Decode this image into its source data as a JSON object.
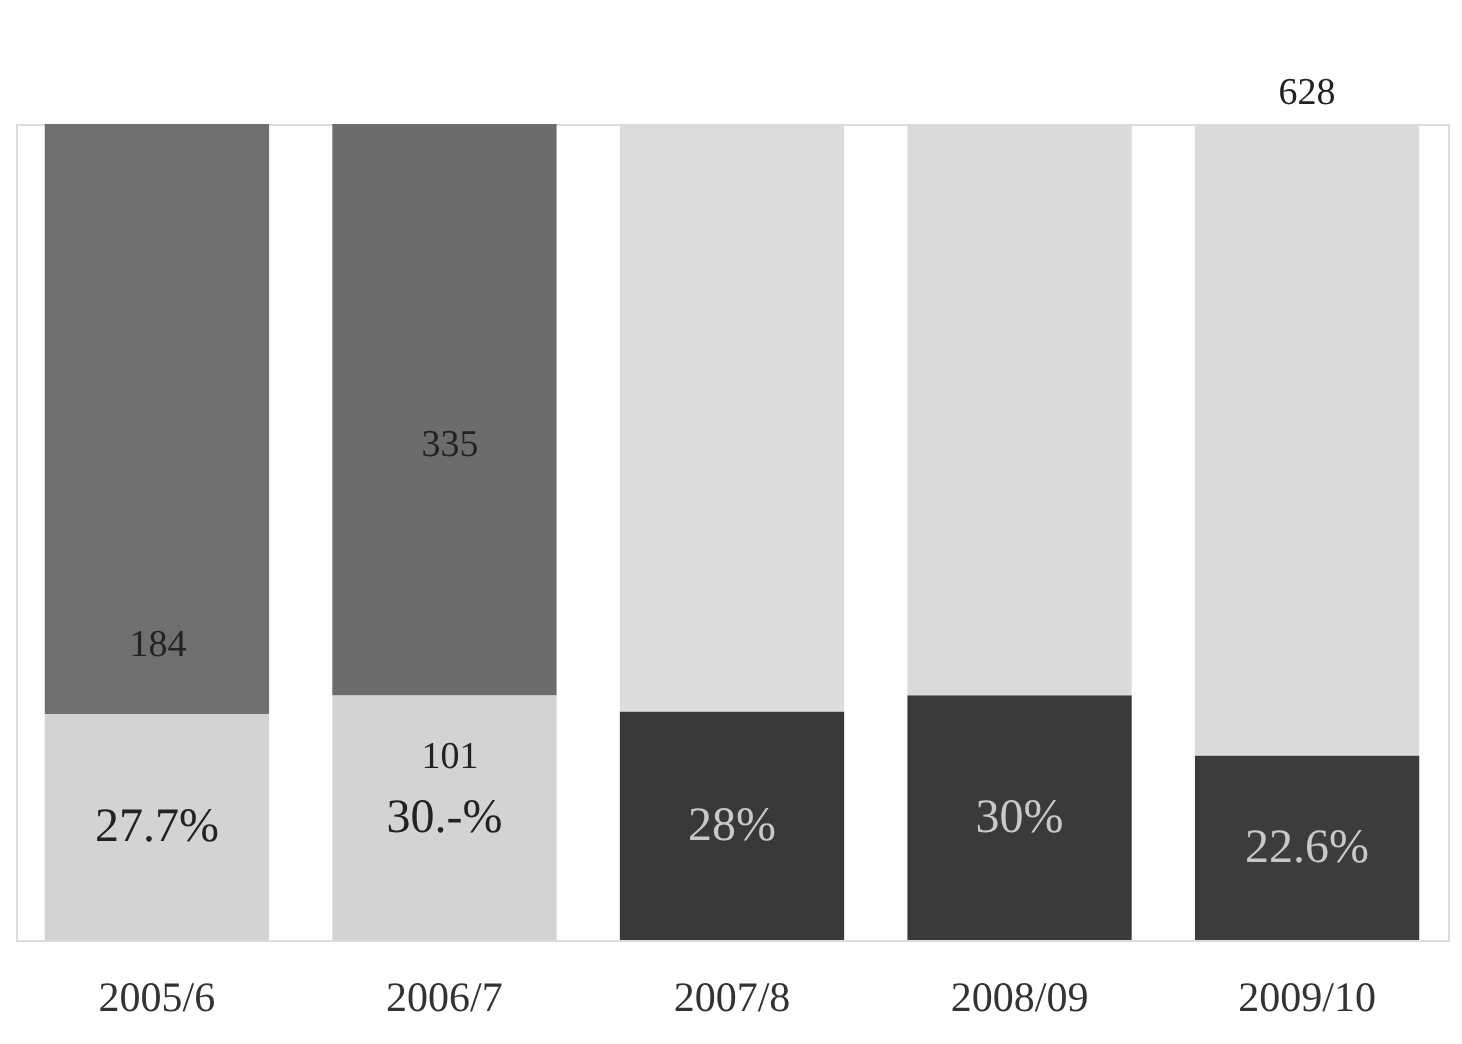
{
  "chart_data": {
    "type": "bar",
    "stacked": true,
    "categories": [
      "2005/6",
      "2006/7",
      "2007/8",
      "2008/09",
      "2009/10"
    ],
    "ylim": [
      0,
      100
    ],
    "tick_labels": "x",
    "grid": false,
    "series": [
      {
        "values": [
          27.7,
          30,
          28,
          30,
          22.6
        ],
        "colors": [
          "#d3d3d3",
          "#d3d3d3",
          "#383838",
          "#3a3a3a",
          "#3c3c3c"
        ],
        "value_labels": [
          "27.7%",
          "30.-%",
          "28%",
          "30%",
          "22.6%"
        ]
      },
      {
        "values": [
          72.3,
          70,
          72,
          70,
          77.4
        ],
        "colors": [
          "#6f6f6f",
          "#6c6c6c",
          "#dcdcdc",
          "#dadada",
          "#dadada"
        ]
      }
    ],
    "annotations": [
      "184",
      "335",
      "101",
      {
        "text": "628",
        "x": "2009/10",
        "y": 100
      }
    ]
  }
}
